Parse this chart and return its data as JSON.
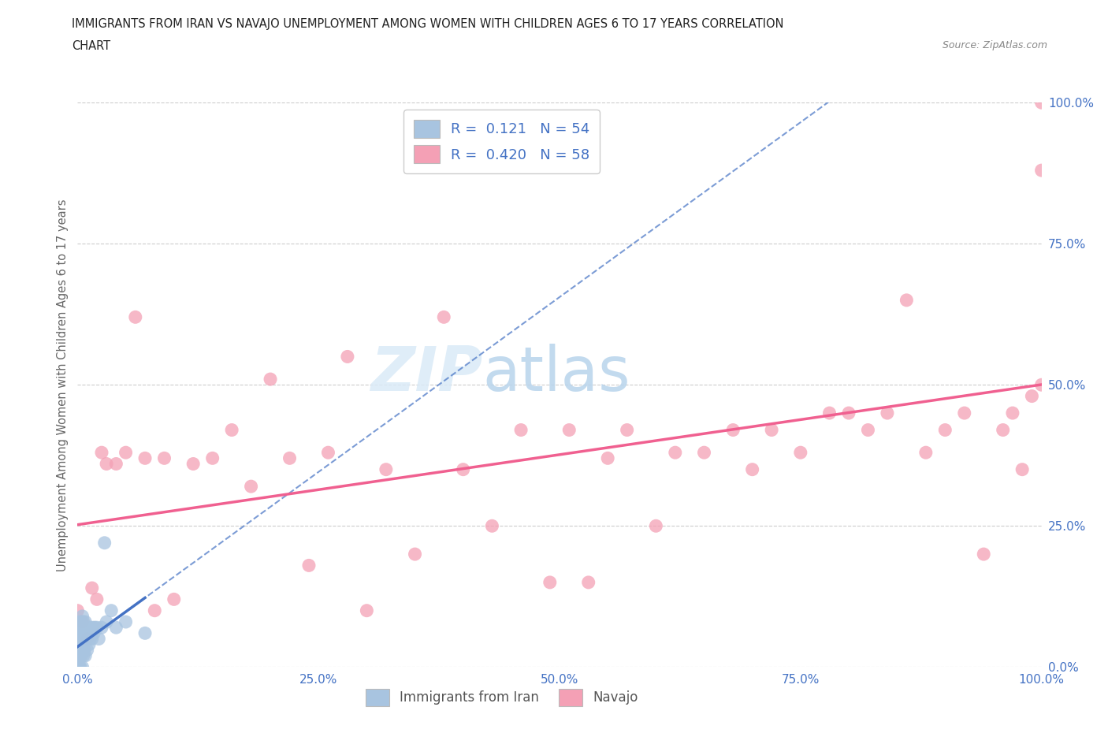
{
  "title_line1": "IMMIGRANTS FROM IRAN VS NAVAJO UNEMPLOYMENT AMONG WOMEN WITH CHILDREN AGES 6 TO 17 YEARS CORRELATION",
  "title_line2": "CHART",
  "source_text": "Source: ZipAtlas.com",
  "ylabel": "Unemployment Among Women with Children Ages 6 to 17 years",
  "legend_iran": "Immigrants from Iran",
  "legend_navajo": "Navajo",
  "r_iran": 0.121,
  "n_iran": 54,
  "r_navajo": 0.42,
  "n_navajo": 58,
  "color_iran": "#a8c4e0",
  "color_navajo": "#f4a0b5",
  "color_iran_line": "#4472c4",
  "color_navajo_line": "#f06090",
  "color_text": "#4472c4",
  "iran_x": [
    0.0,
    0.0,
    0.0,
    0.0,
    0.0,
    0.0,
    0.0,
    0.001,
    0.001,
    0.001,
    0.001,
    0.002,
    0.002,
    0.002,
    0.002,
    0.003,
    0.003,
    0.003,
    0.004,
    0.004,
    0.004,
    0.005,
    0.005,
    0.005,
    0.005,
    0.006,
    0.006,
    0.006,
    0.007,
    0.007,
    0.008,
    0.008,
    0.008,
    0.009,
    0.01,
    0.01,
    0.011,
    0.012,
    0.013,
    0.013,
    0.014,
    0.015,
    0.016,
    0.017,
    0.018,
    0.02,
    0.022,
    0.025,
    0.028,
    0.03,
    0.035,
    0.04,
    0.05,
    0.07
  ],
  "iran_y": [
    0.0,
    0.0,
    0.0,
    0.0,
    0.02,
    0.04,
    0.06,
    0.0,
    0.02,
    0.04,
    0.07,
    0.0,
    0.02,
    0.05,
    0.08,
    0.0,
    0.03,
    0.06,
    0.02,
    0.05,
    0.08,
    0.0,
    0.03,
    0.06,
    0.09,
    0.02,
    0.05,
    0.08,
    0.03,
    0.06,
    0.02,
    0.05,
    0.08,
    0.05,
    0.03,
    0.06,
    0.05,
    0.04,
    0.05,
    0.07,
    0.06,
    0.05,
    0.07,
    0.06,
    0.07,
    0.07,
    0.05,
    0.07,
    0.22,
    0.08,
    0.1,
    0.07,
    0.08,
    0.06
  ],
  "navajo_x": [
    0.0,
    0.005,
    0.01,
    0.015,
    0.02,
    0.025,
    0.03,
    0.04,
    0.05,
    0.06,
    0.07,
    0.08,
    0.09,
    0.1,
    0.12,
    0.14,
    0.16,
    0.18,
    0.2,
    0.22,
    0.24,
    0.26,
    0.28,
    0.3,
    0.32,
    0.35,
    0.38,
    0.4,
    0.43,
    0.46,
    0.49,
    0.51,
    0.53,
    0.55,
    0.57,
    0.6,
    0.62,
    0.65,
    0.68,
    0.7,
    0.72,
    0.75,
    0.78,
    0.8,
    0.82,
    0.84,
    0.86,
    0.88,
    0.9,
    0.92,
    0.94,
    0.96,
    0.97,
    0.98,
    0.99,
    1.0,
    1.0,
    1.0
  ],
  "navajo_y": [
    0.1,
    0.08,
    0.05,
    0.14,
    0.12,
    0.38,
    0.36,
    0.36,
    0.38,
    0.62,
    0.37,
    0.1,
    0.37,
    0.12,
    0.36,
    0.37,
    0.42,
    0.32,
    0.51,
    0.37,
    0.18,
    0.38,
    0.55,
    0.1,
    0.35,
    0.2,
    0.62,
    0.35,
    0.25,
    0.42,
    0.15,
    0.42,
    0.15,
    0.37,
    0.42,
    0.25,
    0.38,
    0.38,
    0.42,
    0.35,
    0.42,
    0.38,
    0.45,
    0.45,
    0.42,
    0.45,
    0.65,
    0.38,
    0.42,
    0.45,
    0.2,
    0.42,
    0.45,
    0.35,
    0.48,
    1.0,
    0.88,
    0.5
  ],
  "xlim": [
    0.0,
    1.0
  ],
  "ylim": [
    0.0,
    1.0
  ],
  "xticks": [
    0.0,
    0.25,
    0.5,
    0.75,
    1.0
  ],
  "yticks": [
    0.0,
    0.25,
    0.5,
    0.75,
    1.0
  ],
  "xticklabels": [
    "0.0%",
    "25.0%",
    "50.0%",
    "75.0%",
    "100.0%"
  ],
  "yticklabels": [
    "0.0%",
    "25.0%",
    "50.0%",
    "75.0%",
    "100.0%"
  ],
  "grid_color": "#cccccc",
  "bg_color": "#ffffff",
  "fig_bg_color": "#ffffff"
}
